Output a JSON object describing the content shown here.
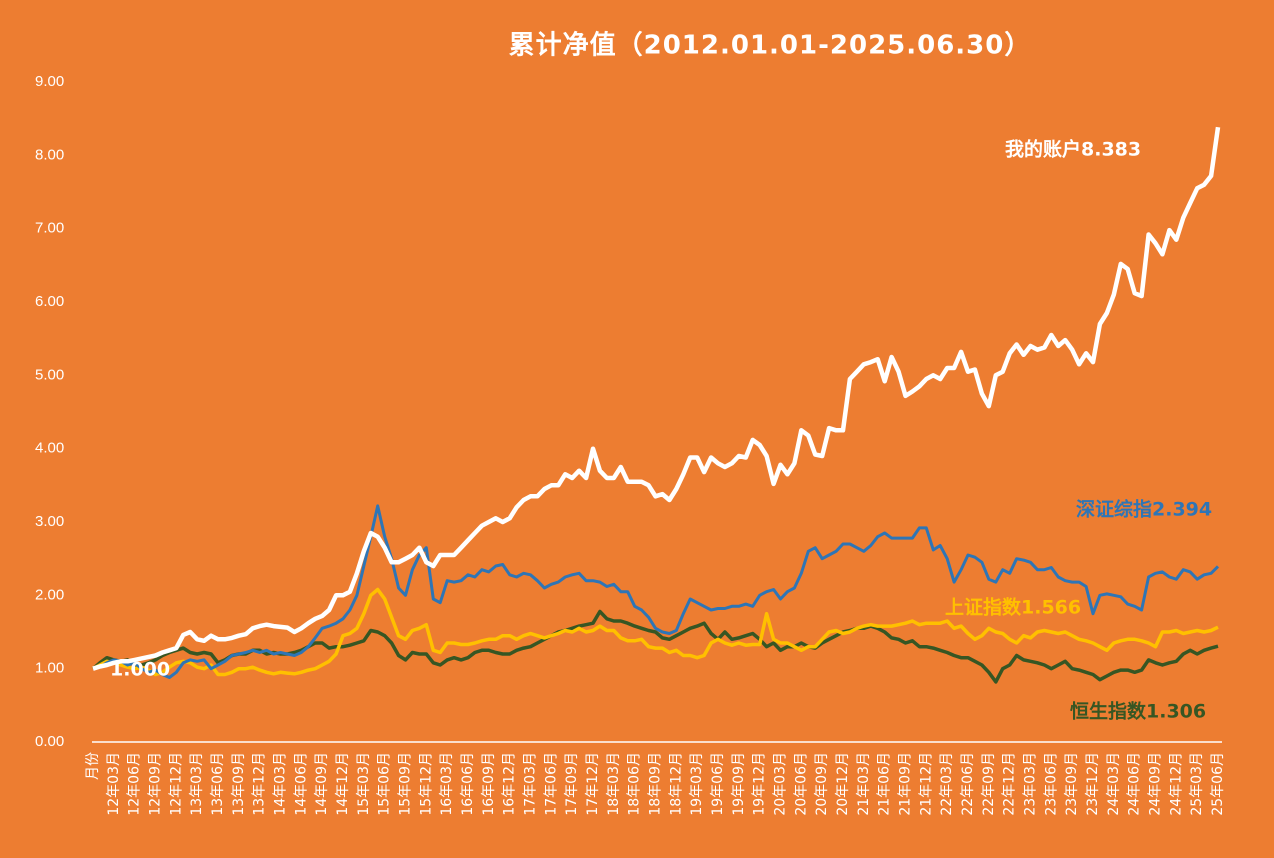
{
  "chart_data": {
    "type": "line",
    "title": "累计净值（2012.01.01-2025.06.30）",
    "categories": [
      "月份",
      null,
      null,
      "12年03月",
      null,
      null,
      "12年06月",
      null,
      null,
      "12年09月",
      null,
      null,
      "12年12月",
      null,
      null,
      "13年03月",
      null,
      null,
      "13年06月",
      null,
      null,
      "13年09月",
      null,
      null,
      "13年12月",
      null,
      null,
      "14年03月",
      null,
      null,
      "14年06月",
      null,
      null,
      "14年09月",
      null,
      null,
      "14年12月",
      null,
      null,
      "15年03月",
      null,
      null,
      "15年06月",
      null,
      null,
      "15年09月",
      null,
      null,
      "15年12月",
      null,
      null,
      "16年03月",
      null,
      null,
      "16年06月",
      null,
      null,
      "16年09月",
      null,
      null,
      "16年12月",
      null,
      null,
      "17年03月",
      null,
      null,
      "17年06月",
      null,
      null,
      "17年09月",
      null,
      null,
      "17年12月",
      null,
      null,
      "18年03月",
      null,
      null,
      "18年06月",
      null,
      null,
      "18年09月",
      null,
      null,
      "18年12月",
      null,
      null,
      "19年03月",
      null,
      null,
      "19年06月",
      null,
      null,
      "19年09月",
      null,
      null,
      "19年12月",
      null,
      null,
      "20年03月",
      null,
      null,
      "20年06月",
      null,
      null,
      "20年09月",
      null,
      null,
      "20年12月",
      null,
      null,
      "21年03月",
      null,
      null,
      "21年06月",
      null,
      null,
      "21年09月",
      null,
      null,
      "21年12月",
      null,
      null,
      "22年03月",
      null,
      null,
      "22年06月",
      null,
      null,
      "22年09月",
      null,
      null,
      "22年12月",
      null,
      null,
      "23年03月",
      null,
      null,
      "23年06月",
      null,
      null,
      "23年09月",
      null,
      null,
      "23年12月",
      null,
      null,
      "24年03月",
      null,
      null,
      "24年06月",
      null,
      null,
      "24年09月",
      null,
      null,
      "24年12月",
      null,
      null,
      "25年03月",
      null,
      null,
      "25年06月"
    ],
    "series": [
      {
        "name": "恒生指数1.306",
        "color": "#375623",
        "values": [
          1.0,
          1.08,
          1.15,
          1.12,
          1.1,
          1.12,
          1.05,
          1.05,
          1.08,
          1.12,
          1.18,
          1.22,
          1.25,
          1.28,
          1.22,
          1.2,
          1.22,
          1.2,
          1.08,
          1.12,
          1.18,
          1.2,
          1.2,
          1.25,
          1.25,
          1.2,
          1.22,
          1.2,
          1.2,
          1.22,
          1.25,
          1.3,
          1.35,
          1.35,
          1.28,
          1.3,
          1.3,
          1.32,
          1.35,
          1.38,
          1.52,
          1.5,
          1.45,
          1.35,
          1.18,
          1.12,
          1.22,
          1.2,
          1.2,
          1.08,
          1.05,
          1.12,
          1.15,
          1.12,
          1.15,
          1.22,
          1.25,
          1.25,
          1.22,
          1.2,
          1.2,
          1.25,
          1.28,
          1.3,
          1.35,
          1.4,
          1.45,
          1.5,
          1.52,
          1.55,
          1.58,
          1.6,
          1.62,
          1.78,
          1.68,
          1.65,
          1.65,
          1.62,
          1.58,
          1.55,
          1.52,
          1.5,
          1.42,
          1.4,
          1.45,
          1.5,
          1.55,
          1.58,
          1.62,
          1.48,
          1.4,
          1.5,
          1.4,
          1.42,
          1.45,
          1.48,
          1.4,
          1.3,
          1.35,
          1.25,
          1.3,
          1.3,
          1.35,
          1.3,
          1.28,
          1.35,
          1.4,
          1.45,
          1.5,
          1.52,
          1.55,
          1.55,
          1.58,
          1.55,
          1.5,
          1.42,
          1.4,
          1.35,
          1.38,
          1.3,
          1.3,
          1.28,
          1.25,
          1.22,
          1.18,
          1.15,
          1.15,
          1.1,
          1.05,
          0.95,
          0.82,
          1.0,
          1.05,
          1.18,
          1.12,
          1.1,
          1.08,
          1.05,
          1.0,
          1.05,
          1.1,
          1.0,
          0.98,
          0.95,
          0.92,
          0.85,
          0.9,
          0.95,
          0.98,
          0.98,
          0.95,
          0.98,
          1.12,
          1.08,
          1.05,
          1.08,
          1.1,
          1.2,
          1.25,
          1.2,
          1.25,
          1.28,
          1.306
        ]
      },
      {
        "name": "上证指数1.566",
        "color": "#FFC000",
        "values": [
          1.0,
          1.05,
          1.1,
          1.08,
          1.05,
          1.02,
          1.0,
          1.02,
          0.98,
          0.92,
          0.95,
          1.02,
          1.08,
          1.1,
          1.08,
          1.02,
          1.0,
          1.05,
          0.92,
          0.92,
          0.95,
          1.0,
          1.0,
          1.02,
          0.98,
          0.95,
          0.93,
          0.95,
          0.94,
          0.93,
          0.95,
          0.98,
          1.0,
          1.05,
          1.1,
          1.2,
          1.45,
          1.48,
          1.55,
          1.75,
          2.0,
          2.08,
          1.95,
          1.7,
          1.45,
          1.4,
          1.52,
          1.55,
          1.6,
          1.25,
          1.22,
          1.35,
          1.35,
          1.33,
          1.33,
          1.35,
          1.38,
          1.4,
          1.4,
          1.45,
          1.45,
          1.4,
          1.45,
          1.48,
          1.45,
          1.42,
          1.45,
          1.48,
          1.52,
          1.5,
          1.55,
          1.5,
          1.52,
          1.58,
          1.52,
          1.52,
          1.42,
          1.38,
          1.38,
          1.4,
          1.3,
          1.28,
          1.28,
          1.22,
          1.25,
          1.18,
          1.18,
          1.15,
          1.18,
          1.35,
          1.4,
          1.35,
          1.32,
          1.35,
          1.32,
          1.33,
          1.33,
          1.75,
          1.4,
          1.35,
          1.35,
          1.3,
          1.25,
          1.3,
          1.3,
          1.4,
          1.5,
          1.52,
          1.48,
          1.5,
          1.55,
          1.58,
          1.6,
          1.58,
          1.58,
          1.58,
          1.6,
          1.62,
          1.65,
          1.6,
          1.62,
          1.62,
          1.62,
          1.65,
          1.55,
          1.58,
          1.48,
          1.4,
          1.45,
          1.55,
          1.5,
          1.48,
          1.4,
          1.35,
          1.45,
          1.42,
          1.5,
          1.52,
          1.5,
          1.48,
          1.5,
          1.45,
          1.4,
          1.38,
          1.35,
          1.3,
          1.25,
          1.35,
          1.38,
          1.4,
          1.4,
          1.38,
          1.35,
          1.3,
          1.5,
          1.5,
          1.52,
          1.48,
          1.5,
          1.52,
          1.5,
          1.52,
          1.566
        ]
      },
      {
        "name": "深证综指2.394",
        "color": "#2E75B6",
        "values": [
          1.0,
          1.02,
          1.08,
          1.12,
          1.1,
          1.05,
          1.08,
          1.0,
          0.95,
          0.98,
          0.92,
          0.88,
          0.95,
          1.08,
          1.12,
          1.1,
          1.12,
          1.0,
          1.05,
          1.1,
          1.18,
          1.2,
          1.22,
          1.25,
          1.22,
          1.25,
          1.2,
          1.22,
          1.2,
          1.18,
          1.22,
          1.3,
          1.42,
          1.55,
          1.58,
          1.62,
          1.68,
          1.8,
          2.0,
          2.4,
          2.8,
          3.22,
          2.8,
          2.5,
          2.1,
          2.0,
          2.35,
          2.55,
          2.65,
          1.95,
          1.9,
          2.2,
          2.18,
          2.2,
          2.28,
          2.25,
          2.35,
          2.32,
          2.4,
          2.42,
          2.28,
          2.25,
          2.3,
          2.28,
          2.2,
          2.1,
          2.15,
          2.18,
          2.25,
          2.28,
          2.3,
          2.2,
          2.2,
          2.18,
          2.12,
          2.15,
          2.05,
          2.05,
          1.85,
          1.8,
          1.7,
          1.55,
          1.5,
          1.48,
          1.52,
          1.75,
          1.95,
          1.9,
          1.85,
          1.8,
          1.82,
          1.82,
          1.85,
          1.85,
          1.88,
          1.85,
          2.0,
          2.05,
          2.08,
          1.95,
          2.05,
          2.1,
          2.3,
          2.6,
          2.65,
          2.5,
          2.55,
          2.6,
          2.7,
          2.7,
          2.65,
          2.6,
          2.68,
          2.8,
          2.85,
          2.78,
          2.78,
          2.78,
          2.78,
          2.92,
          2.92,
          2.62,
          2.68,
          2.5,
          2.18,
          2.35,
          2.55,
          2.52,
          2.45,
          2.22,
          2.18,
          2.35,
          2.3,
          2.5,
          2.48,
          2.45,
          2.35,
          2.35,
          2.38,
          2.25,
          2.2,
          2.18,
          2.18,
          2.12,
          1.75,
          2.0,
          2.02,
          2.0,
          1.98,
          1.88,
          1.85,
          1.8,
          2.25,
          2.3,
          2.32,
          2.25,
          2.22,
          2.35,
          2.32,
          2.22,
          2.28,
          2.3,
          2.394
        ]
      },
      {
        "name": "我的账户8.383",
        "color": "#FFFFFF",
        "values": [
          1.0,
          1.03,
          1.05,
          1.08,
          1.1,
          1.1,
          1.12,
          1.14,
          1.16,
          1.18,
          1.22,
          1.25,
          1.28,
          1.46,
          1.5,
          1.4,
          1.38,
          1.45,
          1.4,
          1.4,
          1.42,
          1.45,
          1.47,
          1.55,
          1.58,
          1.6,
          1.58,
          1.57,
          1.56,
          1.5,
          1.55,
          1.62,
          1.68,
          1.72,
          1.8,
          2.0,
          2.0,
          2.05,
          2.3,
          2.6,
          2.85,
          2.8,
          2.65,
          2.45,
          2.45,
          2.5,
          2.55,
          2.65,
          2.45,
          2.4,
          2.55,
          2.55,
          2.55,
          2.65,
          2.75,
          2.85,
          2.95,
          3.0,
          3.05,
          3.0,
          3.05,
          3.2,
          3.3,
          3.35,
          3.35,
          3.45,
          3.5,
          3.5,
          3.65,
          3.6,
          3.7,
          3.6,
          4.0,
          3.7,
          3.6,
          3.6,
          3.75,
          3.55,
          3.55,
          3.55,
          3.5,
          3.35,
          3.38,
          3.3,
          3.45,
          3.65,
          3.88,
          3.88,
          3.68,
          3.88,
          3.8,
          3.75,
          3.8,
          3.9,
          3.88,
          4.12,
          4.05,
          3.9,
          3.52,
          3.78,
          3.65,
          3.8,
          4.25,
          4.18,
          3.92,
          3.9,
          4.28,
          4.25,
          4.25,
          4.95,
          5.05,
          5.15,
          5.18,
          5.22,
          4.92,
          5.25,
          5.05,
          4.72,
          4.78,
          4.85,
          4.95,
          5.0,
          4.95,
          5.1,
          5.1,
          5.32,
          5.05,
          5.08,
          4.75,
          4.58,
          5.0,
          5.05,
          5.3,
          5.42,
          5.28,
          5.4,
          5.35,
          5.38,
          5.55,
          5.4,
          5.48,
          5.35,
          5.15,
          5.3,
          5.18,
          5.7,
          5.85,
          6.1,
          6.52,
          6.45,
          6.12,
          6.08,
          6.92,
          6.8,
          6.65,
          6.98,
          6.85,
          7.15,
          7.35,
          7.55,
          7.6,
          7.72,
          8.383
        ]
      }
    ],
    "annotations": [
      "1.000"
    ],
    "ylim": [
      0,
      9
    ],
    "yticks": [
      {
        "value": 0,
        "label": "0.00"
      },
      {
        "value": 1,
        "label": "1.00"
      },
      {
        "value": 2,
        "label": "2.00"
      },
      {
        "value": 3,
        "label": "3.00"
      },
      {
        "value": 4,
        "label": "4.00"
      },
      {
        "value": 5,
        "label": "5.00"
      },
      {
        "value": 6,
        "label": "6.00"
      },
      {
        "value": 7,
        "label": "7.00"
      },
      {
        "value": 8,
        "label": "8.00"
      },
      {
        "value": 9,
        "label": "9.00"
      }
    ],
    "grid": false
  }
}
